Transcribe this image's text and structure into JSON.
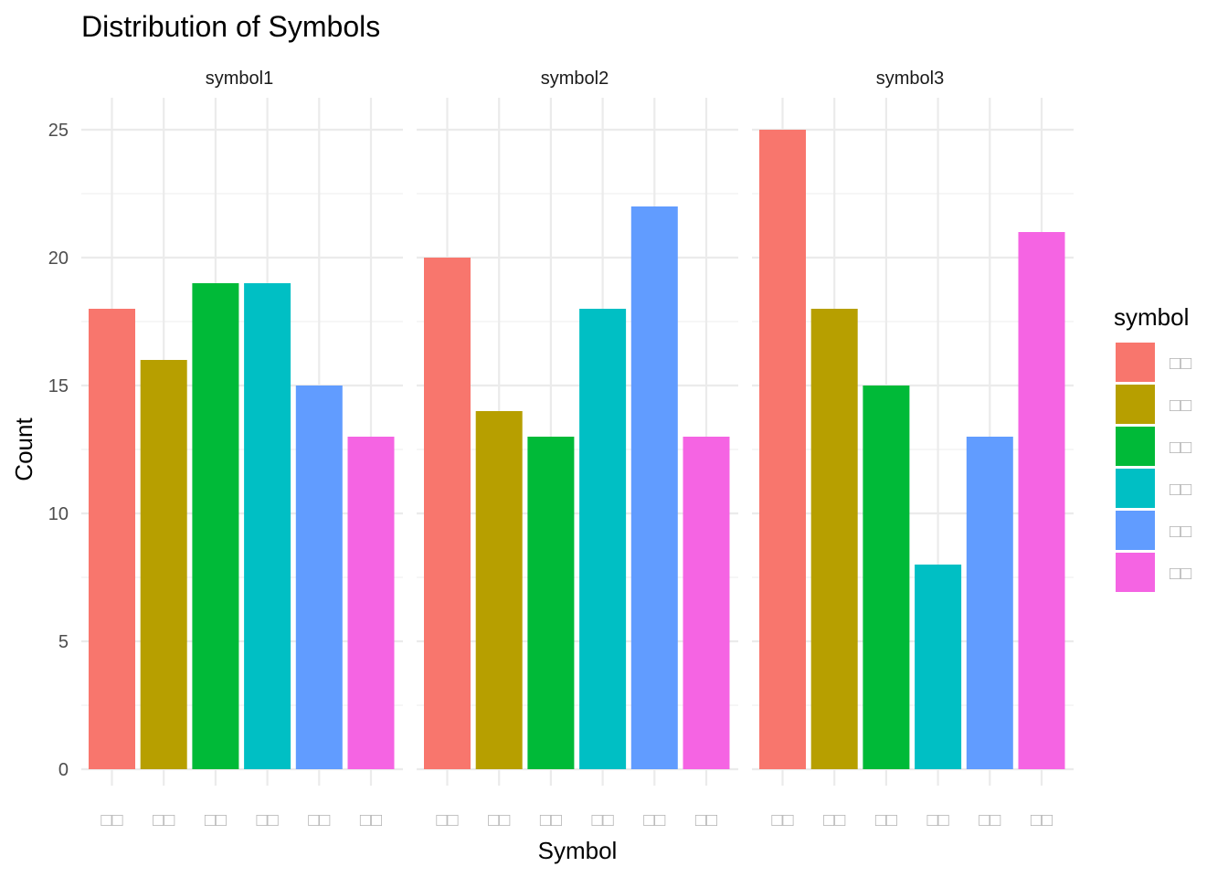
{
  "chart_data": {
    "type": "bar",
    "title": "Distribution of Symbols",
    "xlabel": "Symbol",
    "ylabel": "Count",
    "ylim": [
      0,
      25
    ],
    "yticks": [
      0,
      5,
      10,
      15,
      20,
      25
    ],
    "grid": true,
    "legend_position": "right",
    "legend_title": "symbol",
    "categories": [
      "□□",
      "□□",
      "□□",
      "□□",
      "□□",
      "□□"
    ],
    "colors": [
      "#F8766D",
      "#B79F00",
      "#00BA38",
      "#00BFC4",
      "#619CFF",
      "#F564E3"
    ],
    "facets": [
      {
        "name": "symbol1",
        "values": [
          18,
          16,
          19,
          19,
          15,
          13
        ]
      },
      {
        "name": "symbol2",
        "values": [
          20,
          14,
          13,
          18,
          22,
          13
        ]
      },
      {
        "name": "symbol3",
        "values": [
          25,
          18,
          15,
          8,
          13,
          21
        ]
      }
    ]
  }
}
